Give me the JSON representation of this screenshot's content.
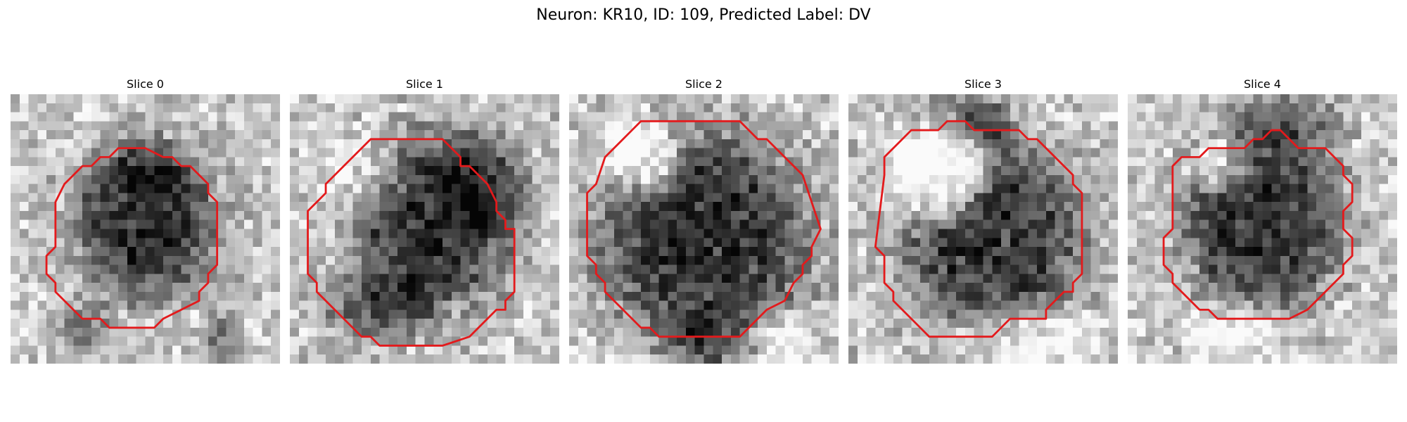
{
  "figure": {
    "title": "Neuron: KR10, ID: 109, Predicted Label: DV",
    "contour_color": "#e31a1c",
    "colormap": "gray",
    "panels": [
      {
        "title": "Slice 0",
        "seed": 11
      },
      {
        "title": "Slice 1",
        "seed": 23
      },
      {
        "title": "Slice 2",
        "seed": 37
      },
      {
        "title": "Slice 3",
        "seed": 51
      },
      {
        "title": "Slice 4",
        "seed": 67
      }
    ]
  }
}
